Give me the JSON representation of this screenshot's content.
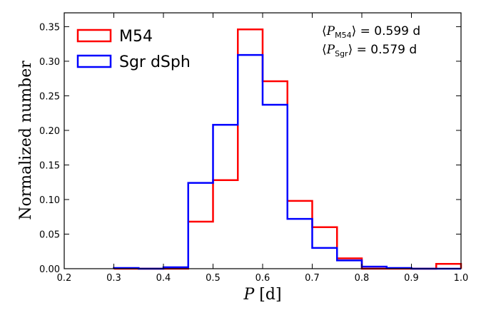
{
  "chart_data": {
    "type": "histogram",
    "xlabel_symbol": "P",
    "xlabel_unit": "[d]",
    "ylabel": "Normalized number",
    "xlim": [
      0.2,
      1.0
    ],
    "ylim": [
      0.0,
      0.37
    ],
    "xticks": [
      "0.2",
      "0.3",
      "0.4",
      "0.5",
      "0.6",
      "0.7",
      "0.8",
      "0.9",
      "1.0"
    ],
    "xtick_values": [
      0.2,
      0.3,
      0.4,
      0.5,
      0.6,
      0.7,
      0.8,
      0.9,
      1.0
    ],
    "yticks": [
      "0.00",
      "0.05",
      "0.10",
      "0.15",
      "0.20",
      "0.25",
      "0.30",
      "0.35"
    ],
    "ytick_values": [
      0.0,
      0.05,
      0.1,
      0.15,
      0.2,
      0.25,
      0.3,
      0.35
    ],
    "bin_edges": [
      0.3,
      0.35,
      0.4,
      0.45,
      0.5,
      0.55,
      0.6,
      0.65,
      0.7,
      0.75,
      0.8,
      0.85,
      0.9,
      0.95,
      1.0
    ],
    "series": [
      {
        "name": "M54",
        "color": "#ff0000",
        "values": [
          0.0,
          0.0,
          0.0,
          0.068,
          0.128,
          0.346,
          0.271,
          0.098,
          0.06,
          0.015,
          0.0,
          0.0,
          0.0,
          0.007
        ]
      },
      {
        "name": "Sgr dSph",
        "color": "#0000ff",
        "values": [
          0.001,
          0.0,
          0.002,
          0.124,
          0.208,
          0.309,
          0.237,
          0.072,
          0.03,
          0.012,
          0.003,
          0.001,
          0.0,
          0.0
        ]
      }
    ],
    "legend_placement": "top-left",
    "annotations": [
      {
        "symbol": "P",
        "subscript": "M54",
        "text": "= 0.599 d"
      },
      {
        "symbol": "P",
        "subscript": "Sgr",
        "text": "= 0.579 d"
      }
    ]
  }
}
